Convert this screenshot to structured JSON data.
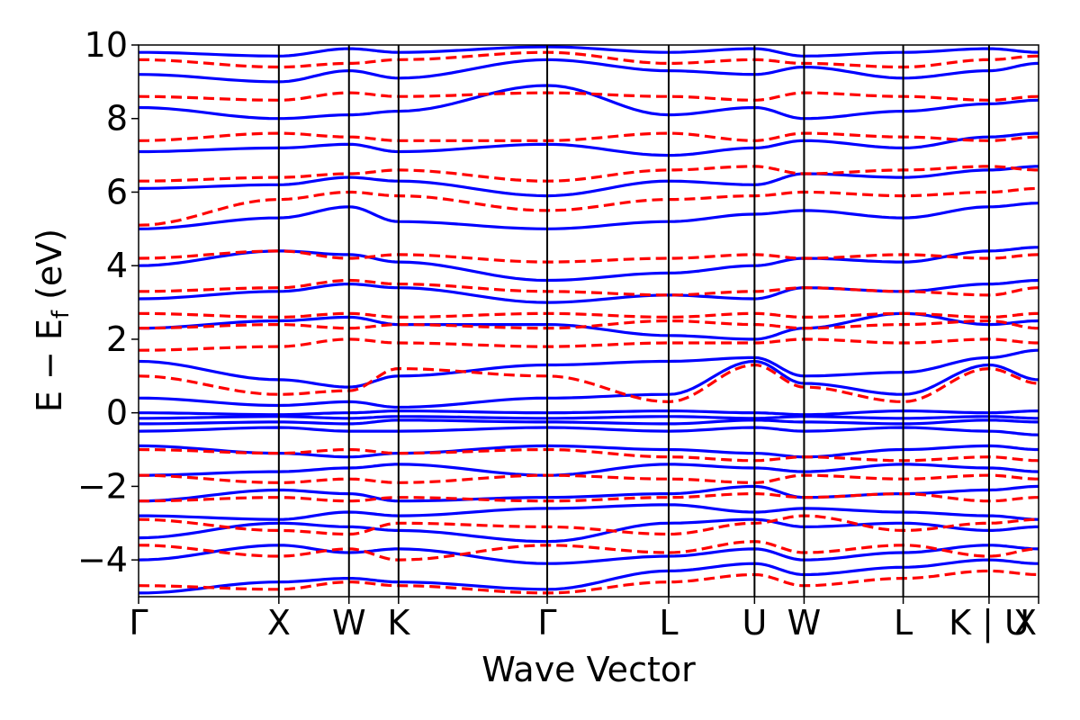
{
  "chart_data": {
    "type": "line",
    "title": "",
    "xlabel": "Wave Vector",
    "ylabel": "E − E",
    "ylabel_subscript": "f",
    "ylabel_unit": " (eV)",
    "ylim": [
      -5,
      10
    ],
    "yticks": [
      -4,
      -2,
      0,
      2,
      4,
      6,
      8,
      10
    ],
    "ytick_labels": [
      "−4",
      "−2",
      "0",
      "2",
      "4",
      "6",
      "8",
      "10"
    ],
    "kpath_labels": [
      "Γ",
      "X",
      "W",
      "K",
      "Γ",
      "L",
      "U",
      "W",
      "L",
      "K | U",
      "X"
    ],
    "kpath_positions": [
      0,
      0.866,
      1.299,
      1.605,
      2.523,
      3.273,
      3.803,
      4.109,
      4.721,
      5.251,
      5.557
    ],
    "grid": false,
    "legend": "none",
    "colors": {
      "solid_series": "#0000ff",
      "dashed_series": "#ff0000",
      "vlines": "#000000"
    },
    "series": [
      {
        "style": "solid",
        "bands": [
          [
            -4.9,
            -4.6,
            -4.5,
            -4.6,
            -4.8,
            -4.3,
            -4.1,
            -4.4,
            -4.2,
            -4.0,
            -4.1
          ],
          [
            -4.0,
            -3.6,
            -3.8,
            -3.7,
            -4.1,
            -3.9,
            -3.7,
            -4.0,
            -3.8,
            -3.6,
            -3.7
          ],
          [
            -3.4,
            -3.0,
            -3.1,
            -3.2,
            -3.5,
            -3.0,
            -2.9,
            -3.1,
            -3.0,
            -3.2,
            -3.1
          ],
          [
            -2.8,
            -2.9,
            -2.7,
            -2.8,
            -2.6,
            -2.5,
            -2.7,
            -2.6,
            -2.7,
            -2.8,
            -2.9
          ],
          [
            -2.4,
            -2.1,
            -2.2,
            -2.4,
            -2.3,
            -2.2,
            -2.0,
            -2.3,
            -2.2,
            -2.1,
            -2.0
          ],
          [
            -1.7,
            -1.6,
            -1.5,
            -1.4,
            -1.7,
            -1.4,
            -1.5,
            -1.6,
            -1.4,
            -1.5,
            -1.6
          ],
          [
            -0.9,
            -1.1,
            -1.2,
            -1.1,
            -0.9,
            -1.0,
            -1.1,
            -1.2,
            -1.0,
            -0.9,
            -1.0
          ],
          [
            -0.5,
            -0.4,
            -0.5,
            -0.5,
            -0.4,
            -0.5,
            -0.4,
            -0.5,
            -0.4,
            -0.5,
            -0.6
          ],
          [
            -0.3,
            -0.25,
            -0.3,
            -0.2,
            -0.25,
            -0.3,
            -0.2,
            -0.25,
            -0.3,
            -0.2,
            -0.25
          ],
          [
            -0.15,
            -0.1,
            -0.15,
            -0.1,
            -0.15,
            -0.1,
            -0.15,
            -0.1,
            -0.15,
            -0.1,
            -0.15
          ],
          [
            0.0,
            -0.05,
            0.0,
            0.05,
            0.0,
            0.05,
            0.0,
            -0.05,
            0.05,
            0.0,
            0.05
          ],
          [
            0.4,
            0.2,
            0.3,
            0.15,
            0.4,
            0.5,
            1.4,
            0.8,
            0.5,
            1.3,
            0.9
          ],
          [
            1.4,
            0.9,
            0.7,
            1.0,
            1.3,
            1.4,
            1.5,
            1.0,
            1.1,
            1.5,
            1.7
          ],
          [
            2.3,
            2.5,
            2.6,
            2.4,
            2.4,
            2.1,
            2.0,
            2.3,
            2.7,
            2.4,
            2.5
          ],
          [
            3.1,
            3.3,
            3.5,
            3.4,
            3.0,
            3.2,
            3.1,
            3.4,
            3.3,
            3.5,
            3.6
          ],
          [
            4.0,
            4.4,
            4.3,
            4.1,
            3.6,
            3.8,
            4.0,
            4.2,
            4.1,
            4.4,
            4.5
          ],
          [
            5.0,
            5.3,
            5.6,
            5.2,
            5.0,
            5.2,
            5.4,
            5.5,
            5.3,
            5.6,
            5.7
          ],
          [
            6.1,
            6.2,
            6.4,
            6.3,
            5.9,
            6.3,
            6.2,
            6.5,
            6.4,
            6.6,
            6.7
          ],
          [
            7.1,
            7.2,
            7.3,
            7.1,
            7.3,
            7.0,
            7.2,
            7.4,
            7.2,
            7.5,
            7.6
          ],
          [
            8.3,
            8.0,
            8.1,
            8.2,
            8.9,
            8.1,
            8.3,
            8.0,
            8.2,
            8.4,
            8.5
          ],
          [
            9.2,
            9.0,
            9.3,
            9.1,
            9.6,
            9.3,
            9.2,
            9.4,
            9.1,
            9.3,
            9.5
          ],
          [
            9.8,
            9.7,
            9.9,
            9.8,
            9.95,
            9.8,
            9.9,
            9.7,
            9.8,
            9.9,
            9.8
          ]
        ]
      },
      {
        "style": "dashed",
        "bands": [
          [
            -4.7,
            -4.8,
            -4.6,
            -4.7,
            -4.9,
            -4.6,
            -4.4,
            -4.7,
            -4.5,
            -4.3,
            -4.4
          ],
          [
            -3.6,
            -3.9,
            -3.7,
            -4.0,
            -3.6,
            -3.8,
            -3.5,
            -3.8,
            -3.6,
            -3.9,
            -3.7
          ],
          [
            -2.9,
            -3.2,
            -3.3,
            -3.0,
            -3.1,
            -3.3,
            -3.0,
            -2.8,
            -3.2,
            -3.0,
            -2.9
          ],
          [
            -2.4,
            -2.3,
            -2.4,
            -2.3,
            -2.4,
            -2.3,
            -2.2,
            -2.3,
            -2.2,
            -2.4,
            -2.3
          ],
          [
            -1.7,
            -1.9,
            -1.8,
            -1.9,
            -1.7,
            -1.8,
            -1.9,
            -1.7,
            -1.8,
            -1.7,
            -1.8
          ],
          [
            -1.0,
            -1.1,
            -1.0,
            -1.1,
            -1.0,
            -1.2,
            -1.3,
            -1.2,
            -1.3,
            -1.2,
            -1.3
          ],
          [
            1.0,
            0.5,
            0.6,
            1.2,
            1.0,
            0.3,
            1.3,
            0.7,
            0.3,
            1.2,
            0.8
          ],
          [
            1.7,
            1.8,
            2.0,
            1.9,
            1.8,
            1.9,
            1.9,
            2.0,
            1.9,
            2.0,
            1.9
          ],
          [
            2.3,
            2.4,
            2.3,
            2.4,
            2.3,
            2.5,
            2.4,
            2.3,
            2.4,
            2.5,
            2.3
          ],
          [
            2.7,
            2.6,
            2.7,
            2.6,
            2.7,
            2.6,
            2.7,
            2.6,
            2.7,
            2.6,
            2.7
          ],
          [
            3.3,
            3.4,
            3.6,
            3.5,
            3.3,
            3.2,
            3.3,
            3.4,
            3.3,
            3.2,
            3.4
          ],
          [
            4.2,
            4.4,
            4.2,
            4.3,
            4.1,
            4.2,
            4.3,
            4.2,
            4.3,
            4.2,
            4.3
          ],
          [
            5.1,
            5.8,
            6.0,
            5.9,
            5.5,
            5.8,
            5.9,
            6.0,
            5.9,
            6.0,
            6.1
          ],
          [
            6.3,
            6.4,
            6.5,
            6.6,
            6.3,
            6.6,
            6.7,
            6.5,
            6.6,
            6.7,
            6.6
          ],
          [
            7.4,
            7.6,
            7.5,
            7.4,
            7.4,
            7.6,
            7.4,
            7.6,
            7.5,
            7.4,
            7.5
          ],
          [
            8.6,
            8.5,
            8.7,
            8.6,
            8.7,
            8.6,
            8.5,
            8.7,
            8.6,
            8.5,
            8.6
          ],
          [
            9.6,
            9.4,
            9.5,
            9.6,
            9.8,
            9.5,
            9.6,
            9.5,
            9.4,
            9.6,
            9.7
          ]
        ]
      }
    ]
  }
}
